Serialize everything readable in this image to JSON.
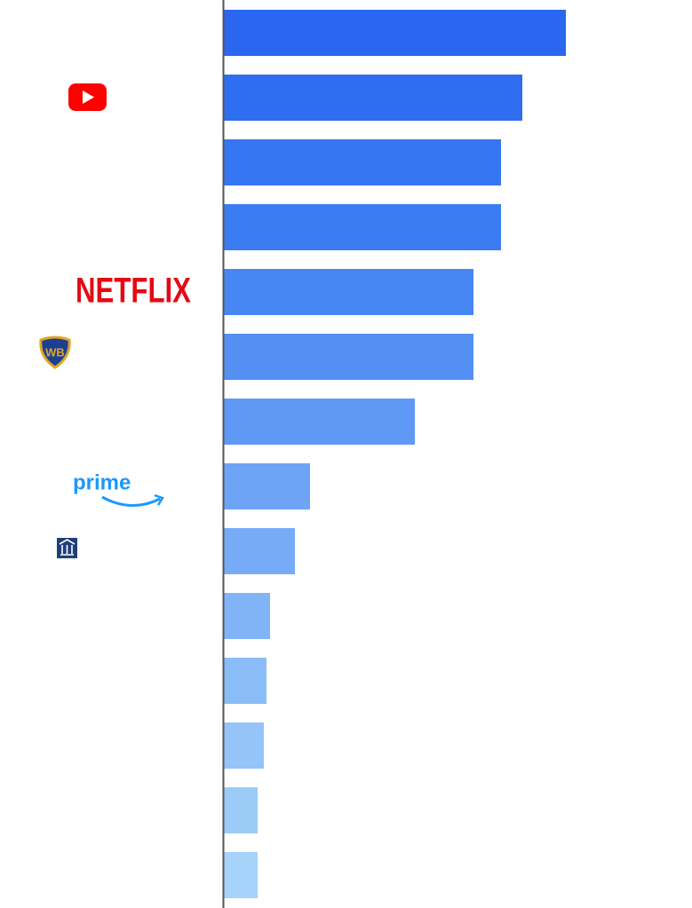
{
  "chart_data": {
    "type": "bar",
    "orientation": "horizontal",
    "categories": [
      null,
      null,
      null,
      null,
      "NETFLIX",
      null,
      null,
      "prime",
      null,
      null,
      null,
      null,
      null,
      null
    ],
    "values": [
      385,
      336,
      312,
      312,
      281,
      281,
      215,
      97,
      80,
      52,
      48,
      45,
      38,
      38
    ],
    "colors": [
      "#2a66f0",
      "#2f6ef1",
      "#3776f2",
      "#3b7cf2",
      "#4886f3",
      "#5490f4",
      "#6099f5",
      "#6ea4f6",
      "#76acf6",
      "#80b4f7",
      "#8abcf7",
      "#94c4f8",
      "#9ccbf8",
      "#a5d3f9"
    ],
    "xlim": [
      0,
      527
    ]
  }
}
